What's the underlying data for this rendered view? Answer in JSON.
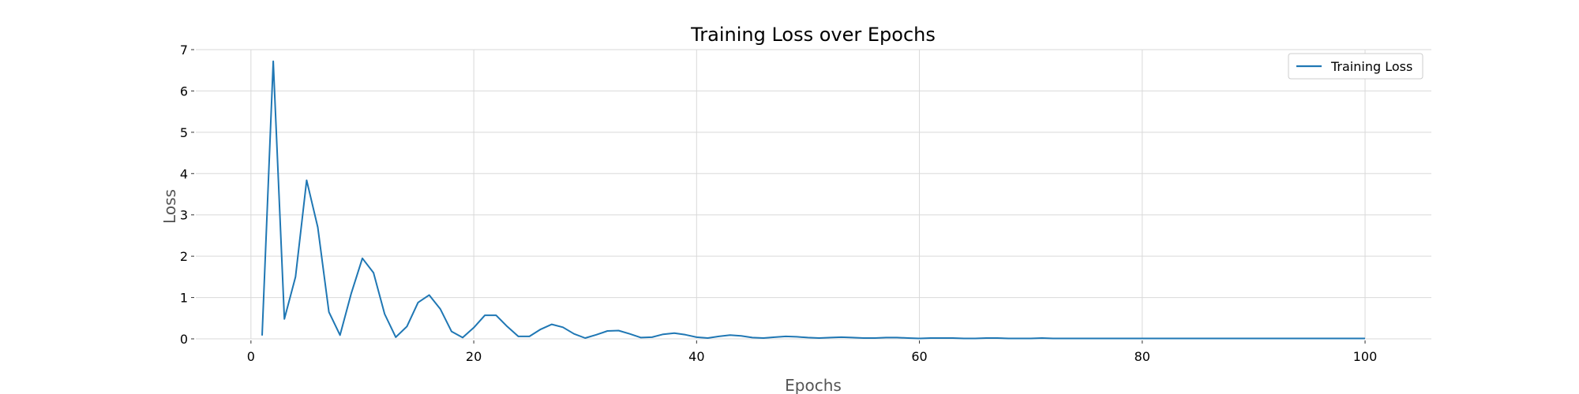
{
  "chart_data": {
    "type": "line",
    "title": "Training Loss over Epochs",
    "xlabel": "Epochs",
    "ylabel": "Loss",
    "xlim": [
      -4.95,
      105.95
    ],
    "ylim": [
      0,
      7
    ],
    "x_ticks": [
      0,
      20,
      40,
      60,
      80,
      100
    ],
    "y_ticks": [
      0,
      1,
      2,
      3,
      4,
      5,
      6,
      7
    ],
    "grid": true,
    "legend_position": "top-right",
    "colors": {
      "series": "#1f77b4",
      "grid": "#d9d9d9",
      "legend_border": "#cccccc"
    },
    "series": [
      {
        "name": "Training Loss",
        "x": [
          1,
          2,
          3,
          4,
          5,
          6,
          7,
          8,
          9,
          10,
          11,
          12,
          13,
          14,
          15,
          16,
          17,
          18,
          19,
          20,
          21,
          22,
          23,
          24,
          25,
          26,
          27,
          28,
          29,
          30,
          31,
          32,
          33,
          34,
          35,
          36,
          37,
          38,
          39,
          40,
          41,
          42,
          43,
          44,
          45,
          46,
          47,
          48,
          49,
          50,
          51,
          52,
          53,
          54,
          55,
          56,
          57,
          58,
          59,
          60,
          61,
          62,
          63,
          64,
          65,
          66,
          67,
          68,
          69,
          70,
          71,
          72,
          73,
          74,
          75,
          76,
          77,
          78,
          79,
          80,
          81,
          82,
          83,
          84,
          85,
          86,
          87,
          88,
          89,
          90,
          91,
          92,
          93,
          94,
          95,
          96,
          97,
          98,
          99,
          100
        ],
        "values": [
          0.08,
          6.72,
          0.48,
          1.5,
          3.84,
          2.7,
          0.65,
          0.09,
          1.1,
          1.95,
          1.6,
          0.6,
          0.04,
          0.3,
          0.88,
          1.06,
          0.72,
          0.18,
          0.03,
          0.27,
          0.57,
          0.57,
          0.3,
          0.06,
          0.06,
          0.23,
          0.35,
          0.28,
          0.12,
          0.02,
          0.1,
          0.19,
          0.2,
          0.12,
          0.03,
          0.04,
          0.11,
          0.14,
          0.1,
          0.04,
          0.02,
          0.06,
          0.09,
          0.07,
          0.03,
          0.02,
          0.04,
          0.06,
          0.05,
          0.03,
          0.02,
          0.03,
          0.04,
          0.03,
          0.02,
          0.02,
          0.03,
          0.03,
          0.02,
          0.01,
          0.02,
          0.02,
          0.02,
          0.01,
          0.01,
          0.02,
          0.02,
          0.01,
          0.01,
          0.01,
          0.02,
          0.01,
          0.01,
          0.01,
          0.01,
          0.01,
          0.01,
          0.01,
          0.01,
          0.01,
          0.01,
          0.01,
          0.01,
          0.01,
          0.01,
          0.01,
          0.01,
          0.01,
          0.01,
          0.01,
          0.01,
          0.01,
          0.01,
          0.01,
          0.01,
          0.01,
          0.01,
          0.01,
          0.01,
          0.01
        ]
      }
    ]
  }
}
